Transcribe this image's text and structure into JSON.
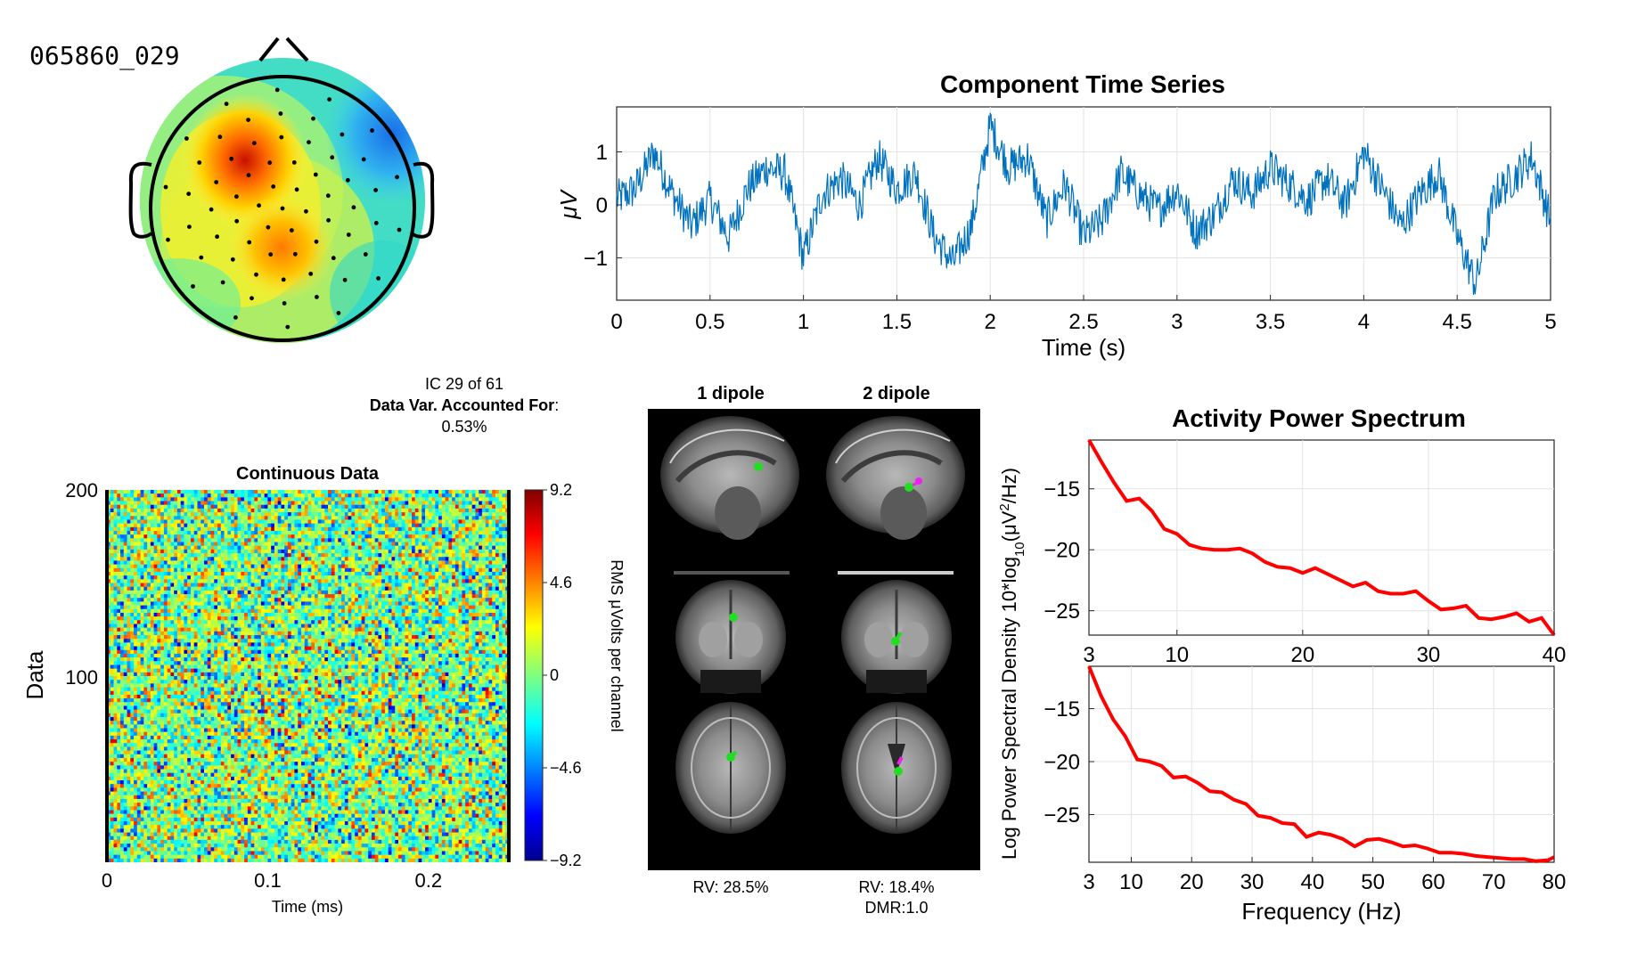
{
  "component_id": "065860_029",
  "ic_info": {
    "line1": "IC 29 of 61",
    "var_label": "Data Var. Accounted For",
    "var_colon": ":",
    "var_value": "0.53%"
  },
  "colors": {
    "series_line": "#0072bd",
    "spectrum_line": "#ff0000",
    "grid": "#e3e3e3",
    "axis": "#262626"
  },
  "chart_data": [
    {
      "type": "line",
      "title": "Component Time Series",
      "xlabel": "Time (s)",
      "ylabel": "μV",
      "xlim": [
        0,
        5
      ],
      "ylim": [
        -1.8,
        1.85
      ],
      "xticks": [
        0,
        0.5,
        1,
        1.5,
        2,
        2.5,
        3,
        3.5,
        4,
        4.5,
        5
      ],
      "xtick_labels": [
        "0",
        "0.5",
        "1",
        "1.5",
        "2",
        "2.5",
        "3",
        "3.5",
        "4",
        "4.5",
        "5"
      ],
      "yticks": [
        -1,
        0,
        1
      ],
      "ytick_labels": [
        "−1",
        "0",
        "1"
      ],
      "grid": true,
      "x": [
        0,
        0.1,
        0.2,
        0.3,
        0.4,
        0.5,
        0.6,
        0.7,
        0.8,
        0.9,
        1.0,
        1.1,
        1.2,
        1.3,
        1.4,
        1.5,
        1.6,
        1.7,
        1.8,
        1.9,
        2.0,
        2.1,
        2.2,
        2.3,
        2.4,
        2.5,
        2.6,
        2.7,
        2.8,
        2.9,
        3.0,
        3.1,
        3.2,
        3.3,
        3.4,
        3.5,
        3.6,
        3.7,
        3.8,
        3.9,
        4.0,
        4.1,
        4.2,
        4.3,
        4.4,
        4.5,
        4.6,
        4.7,
        4.8,
        4.9,
        5.0
      ],
      "y": [
        0.1,
        0.3,
        1.0,
        0.2,
        -0.4,
        0.1,
        -0.6,
        0.3,
        0.7,
        0.6,
        -1.0,
        0.2,
        0.5,
        0.0,
        0.9,
        0.3,
        0.6,
        -0.6,
        -1.1,
        -0.4,
        1.5,
        0.7,
        0.9,
        -0.3,
        0.4,
        -0.6,
        -0.3,
        0.6,
        0.2,
        -0.1,
        0.3,
        -0.5,
        -0.2,
        0.5,
        0.2,
        0.7,
        0.4,
        0.1,
        0.5,
        0.0,
        1.0,
        0.3,
        -0.4,
        0.2,
        0.6,
        -0.6,
        -1.5,
        0.2,
        0.5,
        0.9,
        -0.3
      ]
    },
    {
      "type": "heatmap",
      "title": "Continuous Data",
      "xlabel": "Time (ms)",
      "ylabel": "Data",
      "xlim": [
        0,
        0.25
      ],
      "ylim": [
        1,
        200
      ],
      "xticks": [
        0,
        0.1,
        0.2
      ],
      "xtick_labels": [
        "0",
        "0.1",
        "0.2"
      ],
      "yticks": [
        100,
        200
      ],
      "ytick_labels": [
        "100",
        "200"
      ],
      "colorbar": {
        "label": "RMS μVolts per channel",
        "min": -9.2,
        "max": 9.2,
        "ticks": [
          9.2,
          4.6,
          0,
          -4.6,
          -9.2
        ],
        "tick_labels": [
          "9.2",
          "4.6",
          "0",
          "−4.6",
          "−9.2"
        ]
      }
    },
    {
      "type": "line",
      "title": "Activity Power Spectrum",
      "xlim": [
        3,
        40
      ],
      "ylim": [
        -27,
        -11
      ],
      "xticks": [
        3,
        10,
        20,
        30,
        40
      ],
      "xtick_labels": [
        "3",
        "10",
        "20",
        "30",
        "40"
      ],
      "yticks": [
        -15,
        -20,
        -25
      ],
      "ytick_labels": [
        "−15",
        "−20",
        "−25"
      ],
      "grid": true,
      "x": [
        3,
        4,
        5,
        6,
        7,
        8,
        9,
        10,
        11,
        12,
        13,
        14,
        15,
        16,
        17,
        18,
        19,
        20,
        21,
        22,
        23,
        24,
        25,
        26,
        27,
        28,
        29,
        30,
        31,
        32,
        33,
        34,
        35,
        36,
        37,
        38,
        39,
        40
      ],
      "y": [
        -11.0,
        -12.8,
        -14.5,
        -16.0,
        -15.8,
        -16.8,
        -18.3,
        -18.7,
        -19.6,
        -19.9,
        -20.0,
        -20.0,
        -19.9,
        -20.3,
        -21.0,
        -21.4,
        -21.5,
        -21.9,
        -21.5,
        -22.0,
        -22.5,
        -23.0,
        -22.7,
        -23.4,
        -23.6,
        -23.6,
        -23.4,
        -24.2,
        -24.9,
        -24.8,
        -24.6,
        -25.6,
        -25.7,
        -25.5,
        -25.2,
        -25.9,
        -25.6,
        -27.0
      ]
    },
    {
      "type": "line",
      "xlabel": "Frequency (Hz)",
      "xlim": [
        3,
        80
      ],
      "ylim": [
        -29.5,
        -11
      ],
      "xticks": [
        3,
        10,
        20,
        30,
        40,
        50,
        60,
        70,
        80
      ],
      "xtick_labels": [
        "3",
        "10",
        "20",
        "30",
        "40",
        "50",
        "60",
        "70",
        "80"
      ],
      "yticks": [
        -15,
        -20,
        -25
      ],
      "ytick_labels": [
        "−15",
        "−20",
        "−25"
      ],
      "grid": true,
      "x": [
        3,
        5,
        7,
        9,
        11,
        13,
        15,
        17,
        19,
        21,
        23,
        25,
        27,
        29,
        31,
        33,
        35,
        37,
        39,
        41,
        43,
        45,
        47,
        49,
        51,
        53,
        55,
        57,
        59,
        61,
        63,
        65,
        67,
        69,
        71,
        73,
        75,
        77,
        79,
        80
      ],
      "y": [
        -11.0,
        -13.8,
        -16.0,
        -17.6,
        -19.8,
        -20.0,
        -20.4,
        -21.5,
        -21.4,
        -22.0,
        -22.8,
        -22.9,
        -23.6,
        -24.0,
        -25.1,
        -25.3,
        -25.8,
        -25.9,
        -27.1,
        -26.7,
        -26.9,
        -27.3,
        -28.0,
        -27.4,
        -27.3,
        -27.6,
        -28.0,
        -27.9,
        -28.2,
        -28.6,
        -28.6,
        -28.7,
        -28.9,
        -29.0,
        -29.1,
        -29.2,
        -29.2,
        -29.4,
        -29.3,
        -29.0
      ]
    }
  ],
  "spectrum_ylabel": "Log Power Spectral Density 10*log",
  "spectrum_ylabel_sub": "10",
  "spectrum_ylabel_tail": "(μV",
  "spectrum_ylabel_sup": "2",
  "spectrum_ylabel_end": "/Hz)",
  "dipoles": {
    "col1_title": "1 dipole",
    "col2_title": "2 dipole",
    "rv1": "RV: 28.5%",
    "rv2": "RV: 18.4%",
    "dmr2": "DMR:1.0",
    "dot_green": "#22dd22",
    "dot_magenta": "#ee22ee"
  }
}
